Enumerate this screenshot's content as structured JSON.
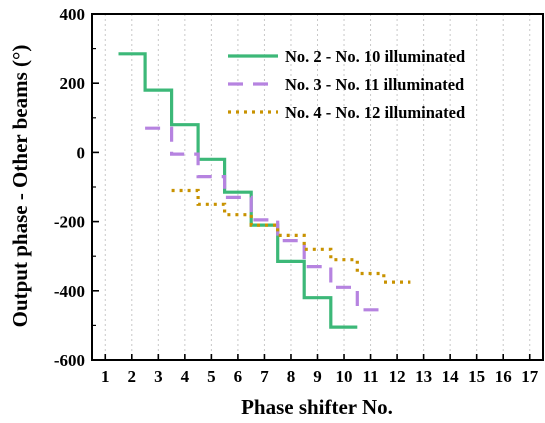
{
  "chart_data": {
    "type": "line",
    "title": "",
    "xlabel": "Phase shifter No.",
    "ylabel": "Output phase - Other beams (°)",
    "xlim": [
      0.5,
      17.5
    ],
    "ylim": [
      -600,
      400
    ],
    "x_ticks": [
      1,
      2,
      3,
      4,
      5,
      6,
      7,
      8,
      9,
      10,
      11,
      12,
      13,
      14,
      15,
      16,
      17
    ],
    "x_tick_labels": [
      "1",
      "2",
      "3",
      "4",
      "5",
      "6",
      "7",
      "8",
      "9",
      "10",
      "11",
      "12",
      "13",
      "14",
      "15",
      "16",
      "17"
    ],
    "y_ticks": [
      -600,
      -400,
      -200,
      0,
      200,
      400
    ],
    "y_tick_labels": [
      "-600",
      "-400",
      "-200",
      "0",
      "200",
      "400"
    ],
    "grid": "vertical-dotted",
    "legend_position": "top-right",
    "series": [
      {
        "name": "No. 2 - No. 10 illuminated",
        "style": "solid",
        "color": "#3cb878",
        "x": [
          2,
          3,
          4,
          5,
          6,
          7,
          8,
          9,
          10
        ],
        "y": [
          285,
          180,
          80,
          -20,
          -115,
          -210,
          -315,
          -420,
          -505
        ]
      },
      {
        "name": "No. 3 - No. 11 illuminated",
        "style": "dashed",
        "color": "#b683e0",
        "x": [
          3,
          4,
          5,
          6,
          7,
          8,
          9,
          10,
          11
        ],
        "y": [
          70,
          -5,
          -70,
          -130,
          -195,
          -255,
          -330,
          -390,
          -455
        ]
      },
      {
        "name": "No. 4 - No. 12 illuminated",
        "style": "dotted",
        "color": "#c89200",
        "x": [
          4,
          5,
          6,
          7,
          8,
          9,
          10,
          11,
          12
        ],
        "y": [
          -110,
          -150,
          -180,
          -210,
          -240,
          -280,
          -310,
          -350,
          -375
        ]
      }
    ]
  }
}
